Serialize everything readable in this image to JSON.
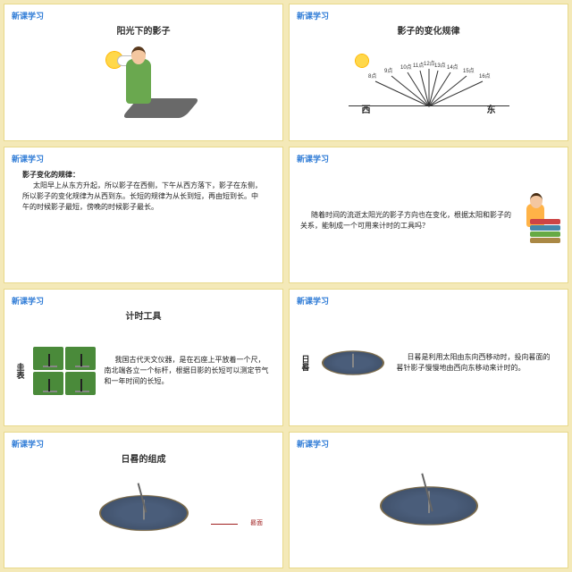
{
  "colors": {
    "page_bg": "#f4e9b8",
    "slide_bg": "#ffffff",
    "border": "#e8d98a",
    "tag": "#2e7bd6",
    "text": "#222222",
    "callout": "#a02020",
    "sun": "#ffd84a",
    "dial": "#4a5d7a"
  },
  "tag": "新课学习",
  "slides": [
    {
      "title": "阳光下的影子"
    },
    {
      "title": "影子的变化规律",
      "west": "西",
      "east": "东",
      "fan_times": [
        "8点",
        "9点",
        "10点",
        "11点",
        "12点",
        "13点",
        "14点",
        "15点",
        "16点"
      ]
    },
    {
      "heading": "影子变化的规律：",
      "text": "太阳早上从东方升起，所以影子在西侧，下午从西方落下，影子在东侧，所以影子的变化规律为从西到东。长短的规律为从长到短，再由短到长。中午的时候影子最短，傍晚的时候影子最长。"
    },
    {
      "text": "随着时间的流逝太阳光的影子方向也在变化，根据太阳和影子的关系，能制成一个可用来计时的工具吗？",
      "book_colors": [
        "#c44",
        "#48a",
        "#6a4",
        "#a84"
      ]
    },
    {
      "title": "计时工具",
      "side": "圭表",
      "text": "我国古代天文仪器，是在石座上平放着一个尺，南北端各立一个标杆，根据日影的长短可以测定节气和一年时间的长短。"
    },
    {
      "side": "日晷",
      "text": "日晷是利用太阳由东向西移动时，投向晷面的晷针影子慢慢地由西向东移动来计时的。"
    },
    {
      "title": "日晷的组成",
      "callout": "晷面"
    },
    {}
  ]
}
